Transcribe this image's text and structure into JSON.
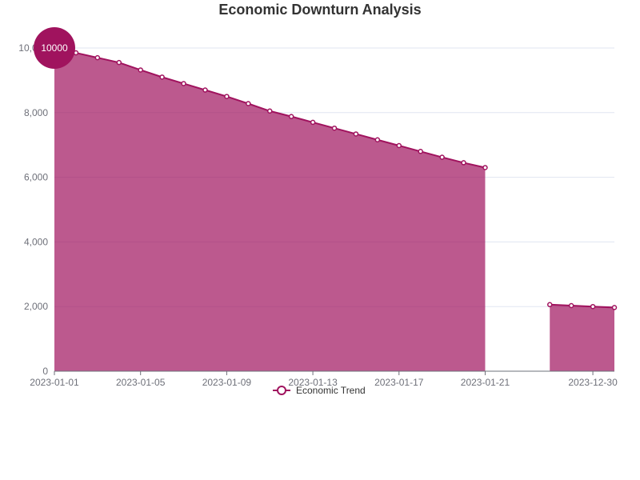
{
  "chart_data": {
    "type": "area",
    "title": "Economic Downturn Analysis",
    "xlabel": "",
    "ylabel": "",
    "ylim": [
      0,
      10000
    ],
    "y_ticks": [
      0,
      2000,
      4000,
      6000,
      8000,
      10000
    ],
    "y_tick_labels": [
      "0",
      "2,000",
      "4,000",
      "6,000",
      "8,000",
      "10,000"
    ],
    "x_categories": [
      "2023-01-01",
      "2023-01-02",
      "2023-01-03",
      "2023-01-04",
      "2023-01-05",
      "2023-01-06",
      "2023-01-07",
      "2023-01-08",
      "2023-01-09",
      "2023-01-10",
      "2023-01-11",
      "2023-01-12",
      "2023-01-13",
      "2023-01-14",
      "2023-01-15",
      "2023-01-16",
      "2023-01-17",
      "2023-01-18",
      "2023-01-19",
      "2023-01-20",
      "2023-01-21",
      "",
      "",
      "2023-12-28",
      "2023-12-29",
      "2023-12-30",
      "2023-12-31"
    ],
    "x_tick_labels": [
      {
        "index": 0,
        "label": "2023-01-01"
      },
      {
        "index": 4,
        "label": "2023-01-05"
      },
      {
        "index": 8,
        "label": "2023-01-09"
      },
      {
        "index": 12,
        "label": "2023-01-13"
      },
      {
        "index": 16,
        "label": "2023-01-17"
      },
      {
        "index": 20,
        "label": "2023-01-21"
      },
      {
        "index": 25,
        "label": "2023-12-30"
      }
    ],
    "series": [
      {
        "name": "Economic Trend",
        "color": "#a0135e",
        "values": [
          10000,
          9850,
          9700,
          9550,
          9320,
          9100,
          8900,
          8700,
          8500,
          8280,
          8050,
          7880,
          7700,
          7520,
          7340,
          7160,
          6980,
          6800,
          6620,
          6450,
          6300,
          null,
          null,
          2060,
          2030,
          2000,
          1970
        ]
      }
    ],
    "max_marker": {
      "label": "10000"
    },
    "legend_position": "bottom",
    "grid": true
  }
}
